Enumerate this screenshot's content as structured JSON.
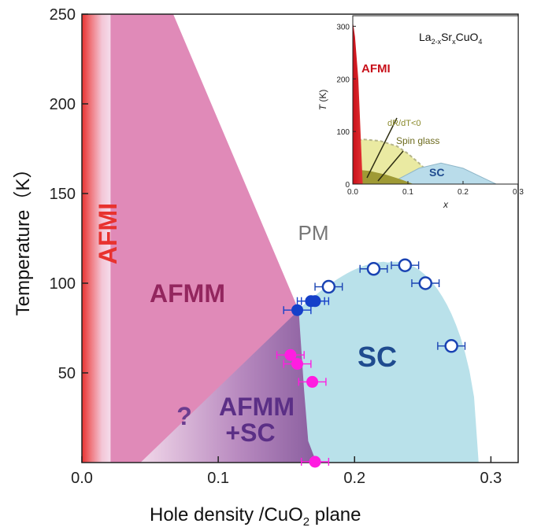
{
  "chart_data": [
    {
      "type": "scatter",
      "xlabel": "Hole density /CuO",
      "xlabel_sub": "2",
      "xlabel_tail": " plane",
      "ylabel": "Temperature（K）",
      "xlim": [
        0.0,
        0.32
      ],
      "ylim": [
        0,
        250
      ],
      "xticks": [
        "0.0",
        "0.1",
        "0.2",
        "0.3"
      ],
      "yticks": [
        "50",
        "100",
        "150",
        "200",
        "250"
      ],
      "grid": false,
      "regions": {
        "afmi": "AFMI",
        "afmm": "AFMM",
        "pm": "PM",
        "sc": "SC",
        "unknown": "?",
        "coexist_line1": "AFMM",
        "coexist_line2": "+SC"
      },
      "colors": {
        "afmi": "#e8322f",
        "afmm": "#e08ab8",
        "sc": "#b9e1ea",
        "coexist": "#8f5a9e",
        "open_marker": "#1a43b3",
        "filled_marker": "#1540c9",
        "magenta_marker": "#ff1de0"
      },
      "series": [
        {
          "marker": "open-circle",
          "points": [
            {
              "x": 0.181,
              "y": 98,
              "xerr": 0.01
            },
            {
              "x": 0.214,
              "y": 108,
              "xerr": 0.01
            },
            {
              "x": 0.237,
              "y": 110,
              "xerr": 0.01
            },
            {
              "x": 0.252,
              "y": 100,
              "xerr": 0.01
            },
            {
              "x": 0.271,
              "y": 65,
              "xerr": 0.01
            }
          ]
        },
        {
          "marker": "filled-circle",
          "points": [
            {
              "x": 0.158,
              "y": 85,
              "xerr": 0.01
            },
            {
              "x": 0.168,
              "y": 90,
              "xerr": 0.01
            },
            {
              "x": 0.171,
              "y": 90,
              "xerr": 0.01
            }
          ]
        },
        {
          "marker": "magenta-circle",
          "points": [
            {
              "x": 0.153,
              "y": 60,
              "xerr": 0.01
            },
            {
              "x": 0.158,
              "y": 55,
              "xerr": 0.01
            },
            {
              "x": 0.169,
              "y": 45,
              "xerr": 0.01
            },
            {
              "x": 0.171,
              "y": 0,
              "xerr": 0.01
            }
          ]
        }
      ]
    },
    {
      "type": "area",
      "title_parts": [
        "La",
        "2-x",
        "Sr",
        "x",
        "CuO",
        "4"
      ],
      "xlabel": "x",
      "ylabel_sym": "T",
      "ylabel_unit": " (K)",
      "xlim": [
        0.0,
        0.3
      ],
      "ylim": [
        0,
        320
      ],
      "xticks": [
        "0.0",
        "0.1",
        "0.2",
        "0.3"
      ],
      "yticks": [
        "0",
        "100",
        "200",
        "300"
      ],
      "annotations": {
        "afmi": "AFMI",
        "drdt": "dR/dT<0",
        "spin_glass": "Spin glass",
        "sc": "SC"
      },
      "regions": {
        "afmi_boundary": [
          [
            0.0,
            310
          ],
          [
            0.004,
            280
          ],
          [
            0.01,
            200
          ],
          [
            0.014,
            100
          ],
          [
            0.018,
            0
          ]
        ],
        "drdt_boundary": [
          [
            0.0,
            82
          ],
          [
            0.02,
            85
          ],
          [
            0.05,
            82
          ],
          [
            0.08,
            72
          ],
          [
            0.1,
            58
          ],
          [
            0.12,
            40
          ],
          [
            0.14,
            20
          ],
          [
            0.15,
            0
          ]
        ],
        "spin_glass_boundary": [
          [
            0.0,
            28
          ],
          [
            0.03,
            25
          ],
          [
            0.06,
            18
          ],
          [
            0.09,
            8
          ],
          [
            0.11,
            0
          ]
        ],
        "sc_dome": [
          [
            0.05,
            0
          ],
          [
            0.08,
            8
          ],
          [
            0.12,
            30
          ],
          [
            0.16,
            40
          ],
          [
            0.2,
            30
          ],
          [
            0.24,
            10
          ],
          [
            0.26,
            0
          ]
        ]
      }
    }
  ]
}
